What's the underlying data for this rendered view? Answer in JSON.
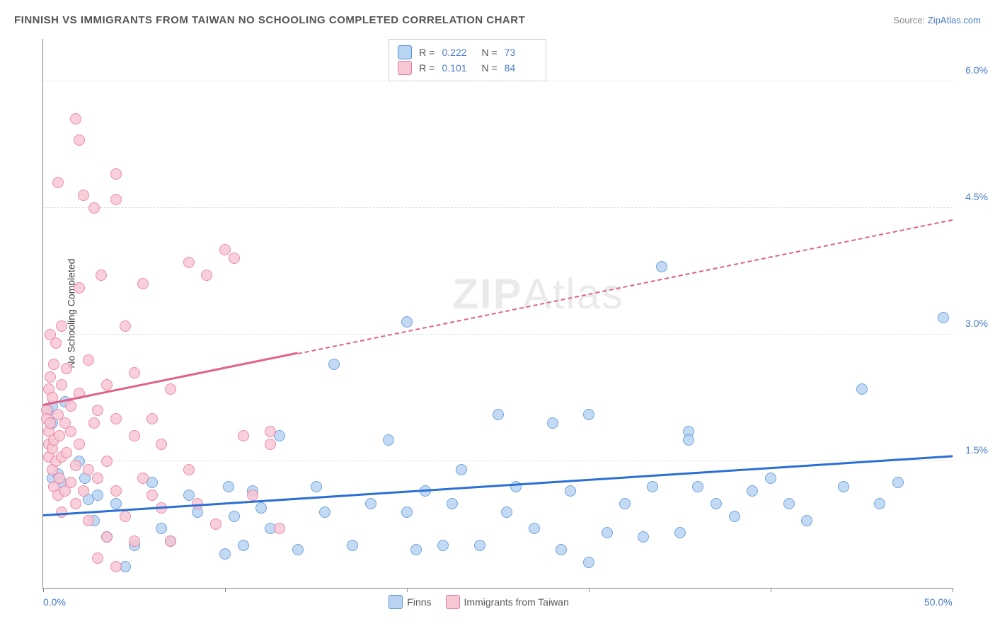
{
  "title": "FINNISH VS IMMIGRANTS FROM TAIWAN NO SCHOOLING COMPLETED CORRELATION CHART",
  "source_label": "Source:",
  "source_name": "ZipAtlas.com",
  "watermark": {
    "bold": "ZIP",
    "light": "Atlas"
  },
  "y_axis_title": "No Schooling Completed",
  "chart": {
    "type": "scatter",
    "background_color": "#ffffff",
    "grid_color": "#dddddd",
    "axis_color": "#888888",
    "tick_label_color": "#4a7bc8",
    "xlim": [
      0,
      50
    ],
    "ylim": [
      0,
      6.5
    ],
    "x_ticks_at": [
      0,
      10,
      20,
      30,
      40,
      50
    ],
    "x_labels": [
      {
        "at": 0,
        "text": "0.0%"
      },
      {
        "at": 50,
        "text": "50.0%"
      }
    ],
    "y_gridlines": [
      1.5,
      3.0,
      4.5,
      6.0
    ],
    "y_labels": [
      "1.5%",
      "3.0%",
      "4.5%",
      "6.0%"
    ],
    "legend_stats": [
      {
        "series": 0,
        "r": "0.222",
        "n": "73"
      },
      {
        "series": 1,
        "r": "0.101",
        "n": "84"
      }
    ],
    "series": [
      {
        "name": "Finns",
        "marker_fill": "#b9d4f3",
        "marker_stroke": "#5a94d6",
        "swatch_fill": "#b9d4f3",
        "swatch_border": "#5a94d6",
        "trend_color": "#2a6fd6",
        "trend": {
          "x1": 0,
          "y1": 0.85,
          "x2": 50,
          "y2": 1.55,
          "dash_after_x": null
        },
        "points": [
          [
            0.3,
            2.1
          ],
          [
            0.5,
            2.15
          ],
          [
            0.5,
            1.95
          ],
          [
            0.5,
            1.3
          ],
          [
            0.8,
            1.35
          ],
          [
            1.0,
            1.25
          ],
          [
            1.2,
            2.2
          ],
          [
            2.0,
            1.5
          ],
          [
            2.3,
            1.3
          ],
          [
            2.5,
            1.05
          ],
          [
            2.8,
            0.8
          ],
          [
            3.0,
            1.1
          ],
          [
            3.5,
            0.6
          ],
          [
            4.0,
            1.0
          ],
          [
            4.5,
            0.25
          ],
          [
            5.0,
            0.5
          ],
          [
            6.0,
            1.25
          ],
          [
            6.5,
            0.7
          ],
          [
            7.0,
            0.55
          ],
          [
            8.0,
            1.1
          ],
          [
            8.5,
            0.9
          ],
          [
            10.0,
            0.4
          ],
          [
            10.2,
            1.2
          ],
          [
            10.5,
            0.85
          ],
          [
            11.0,
            0.5
          ],
          [
            11.5,
            1.15
          ],
          [
            12.0,
            0.95
          ],
          [
            12.5,
            0.7
          ],
          [
            13.0,
            1.8
          ],
          [
            14.0,
            0.45
          ],
          [
            15.0,
            1.2
          ],
          [
            15.5,
            0.9
          ],
          [
            16.0,
            2.65
          ],
          [
            17.0,
            0.5
          ],
          [
            18.0,
            1.0
          ],
          [
            19.0,
            1.75
          ],
          [
            20.0,
            3.15
          ],
          [
            20.0,
            0.9
          ],
          [
            20.5,
            0.45
          ],
          [
            21.0,
            1.15
          ],
          [
            22.0,
            0.5
          ],
          [
            22.5,
            1.0
          ],
          [
            23.0,
            1.4
          ],
          [
            24.0,
            0.5
          ],
          [
            25.0,
            2.05
          ],
          [
            25.5,
            0.9
          ],
          [
            26.0,
            1.2
          ],
          [
            27.0,
            0.7
          ],
          [
            28.0,
            1.95
          ],
          [
            28.5,
            0.45
          ],
          [
            29.0,
            1.15
          ],
          [
            30.0,
            2.05
          ],
          [
            30.0,
            0.3
          ],
          [
            31.0,
            0.65
          ],
          [
            32.0,
            1.0
          ],
          [
            33.0,
            0.6
          ],
          [
            33.5,
            1.2
          ],
          [
            34.0,
            3.8
          ],
          [
            35.0,
            0.65
          ],
          [
            35.5,
            1.85
          ],
          [
            35.5,
            1.75
          ],
          [
            36.0,
            1.2
          ],
          [
            37.0,
            1.0
          ],
          [
            38.0,
            0.85
          ],
          [
            39.0,
            1.15
          ],
          [
            40.0,
            1.3
          ],
          [
            41.0,
            1.0
          ],
          [
            42.0,
            0.8
          ],
          [
            44.0,
            1.2
          ],
          [
            45.0,
            2.35
          ],
          [
            46.0,
            1.0
          ],
          [
            47.0,
            1.25
          ],
          [
            49.5,
            3.2
          ]
        ]
      },
      {
        "name": "Immigrants from Taiwan",
        "marker_fill": "#f7c7d4",
        "marker_stroke": "#e77a9a",
        "swatch_fill": "#f7c7d4",
        "swatch_border": "#e77a9a",
        "trend_color": "#e26088",
        "trend": {
          "x1": 0,
          "y1": 2.15,
          "x2": 50,
          "y2": 4.35,
          "dash_after_x": 14
        },
        "points": [
          [
            0.2,
            2.1
          ],
          [
            0.2,
            2.0
          ],
          [
            0.3,
            2.35
          ],
          [
            0.3,
            1.85
          ],
          [
            0.3,
            1.7
          ],
          [
            0.3,
            1.55
          ],
          [
            0.4,
            2.5
          ],
          [
            0.4,
            3.0
          ],
          [
            0.4,
            1.95
          ],
          [
            0.5,
            1.65
          ],
          [
            0.5,
            2.25
          ],
          [
            0.5,
            1.4
          ],
          [
            0.6,
            2.65
          ],
          [
            0.6,
            1.2
          ],
          [
            0.6,
            1.75
          ],
          [
            0.7,
            2.9
          ],
          [
            0.7,
            1.5
          ],
          [
            0.8,
            2.05
          ],
          [
            0.8,
            1.1
          ],
          [
            0.8,
            4.8
          ],
          [
            0.9,
            1.8
          ],
          [
            0.9,
            1.3
          ],
          [
            1.0,
            2.4
          ],
          [
            1.0,
            1.55
          ],
          [
            1.0,
            0.9
          ],
          [
            1.0,
            3.1
          ],
          [
            1.2,
            1.95
          ],
          [
            1.2,
            1.15
          ],
          [
            1.3,
            1.6
          ],
          [
            1.3,
            2.6
          ],
          [
            1.5,
            1.25
          ],
          [
            1.5,
            1.85
          ],
          [
            1.5,
            2.15
          ],
          [
            1.8,
            5.55
          ],
          [
            1.8,
            1.0
          ],
          [
            1.8,
            1.45
          ],
          [
            2.0,
            2.3
          ],
          [
            2.0,
            5.3
          ],
          [
            2.0,
            1.7
          ],
          [
            2.0,
            3.55
          ],
          [
            2.2,
            4.65
          ],
          [
            2.2,
            1.15
          ],
          [
            2.5,
            2.7
          ],
          [
            2.5,
            1.4
          ],
          [
            2.5,
            0.8
          ],
          [
            2.8,
            1.95
          ],
          [
            2.8,
            4.5
          ],
          [
            3.0,
            0.35
          ],
          [
            3.0,
            1.3
          ],
          [
            3.0,
            2.1
          ],
          [
            3.2,
            3.7
          ],
          [
            3.5,
            0.6
          ],
          [
            3.5,
            1.5
          ],
          [
            3.5,
            2.4
          ],
          [
            4.0,
            1.15
          ],
          [
            4.0,
            4.9
          ],
          [
            4.0,
            4.6
          ],
          [
            4.0,
            0.25
          ],
          [
            4.0,
            2.0
          ],
          [
            4.5,
            0.85
          ],
          [
            4.5,
            3.1
          ],
          [
            5.0,
            0.55
          ],
          [
            5.0,
            1.8
          ],
          [
            5.0,
            2.55
          ],
          [
            5.5,
            3.6
          ],
          [
            5.5,
            1.3
          ],
          [
            6.0,
            2.0
          ],
          [
            6.0,
            1.1
          ],
          [
            6.5,
            1.7
          ],
          [
            6.5,
            0.95
          ],
          [
            7.0,
            2.35
          ],
          [
            7.0,
            0.55
          ],
          [
            8.0,
            1.4
          ],
          [
            8.0,
            3.85
          ],
          [
            8.5,
            1.0
          ],
          [
            9.0,
            3.7
          ],
          [
            9.5,
            0.75
          ],
          [
            10.0,
            4.0
          ],
          [
            10.5,
            3.9
          ],
          [
            11.0,
            1.8
          ],
          [
            11.5,
            1.1
          ],
          [
            12.5,
            1.85
          ],
          [
            12.5,
            1.7
          ],
          [
            13.0,
            0.7
          ]
        ]
      }
    ]
  }
}
